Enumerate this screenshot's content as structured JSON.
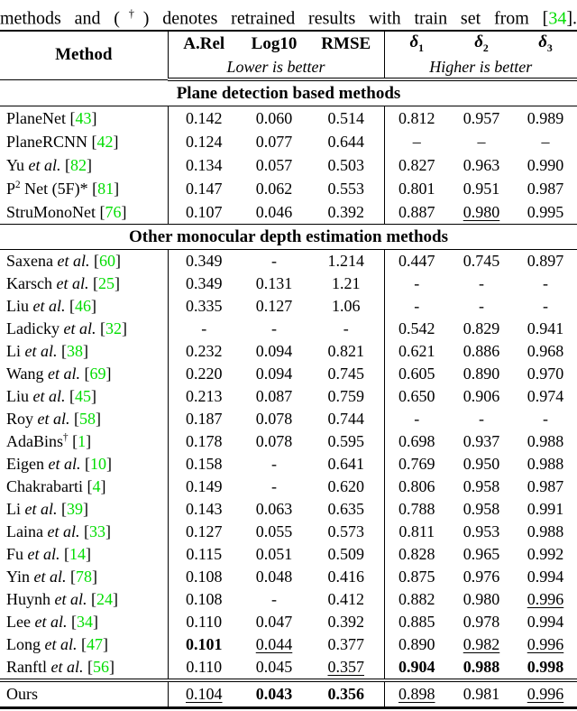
{
  "colors": {
    "cite_green": "#00dd00",
    "text": "#000000",
    "background": "#ffffff"
  },
  "caption": {
    "pre": "methods and (",
    "dagger": "†",
    "post_dagger": ") denotes retrained results with train set from ",
    "cite_open": "[",
    "cite_num": "34",
    "cite_close": "]."
  },
  "header": {
    "method": "Method",
    "metrics": [
      "A.Rel",
      "Log10",
      "RMSE"
    ],
    "deltas": [
      {
        "sym": "δ",
        "sub": "1"
      },
      {
        "sym": "δ",
        "sub": "2"
      },
      {
        "sym": "δ",
        "sub": "3"
      }
    ],
    "lower_note": "Lower is better",
    "higher_note": "Higher is better"
  },
  "sections": [
    {
      "title": "Plane detection based methods",
      "rows": [
        {
          "method": {
            "parts": [
              {
                "t": "PlaneNet"
              }
            ],
            "cite": "43"
          },
          "values": [
            {
              "t": "0.142"
            },
            {
              "t": "0.060"
            },
            {
              "t": "0.514"
            },
            {
              "t": "0.812"
            },
            {
              "t": "0.957"
            },
            {
              "t": "0.989"
            }
          ]
        },
        {
          "method": {
            "parts": [
              {
                "t": "PlaneRCNN"
              }
            ],
            "cite": "42"
          },
          "values": [
            {
              "t": "0.124"
            },
            {
              "t": "0.077"
            },
            {
              "t": "0.644"
            },
            {
              "t": "–"
            },
            {
              "t": "–"
            },
            {
              "t": "–"
            }
          ]
        },
        {
          "method": {
            "parts": [
              {
                "t": "Yu "
              },
              {
                "t": "et al.",
                "i": true
              }
            ],
            "cite": "82"
          },
          "values": [
            {
              "t": "0.134"
            },
            {
              "t": "0.057"
            },
            {
              "t": "0.503"
            },
            {
              "t": "0.827"
            },
            {
              "t": "0.963"
            },
            {
              "t": "0.990"
            }
          ]
        },
        {
          "method": {
            "parts": [
              {
                "t": "P"
              },
              {
                "t": "2",
                "sup": true
              },
              {
                "t": " Net (5F)*"
              }
            ],
            "cite": "81"
          },
          "values": [
            {
              "t": "0.147"
            },
            {
              "t": "0.062"
            },
            {
              "t": "0.553"
            },
            {
              "t": "0.801"
            },
            {
              "t": "0.951"
            },
            {
              "t": "0.987"
            }
          ]
        },
        {
          "method": {
            "parts": [
              {
                "t": "StruMonoNet"
              }
            ],
            "cite": "76"
          },
          "values": [
            {
              "t": "0.107"
            },
            {
              "t": "0.046"
            },
            {
              "t": "0.392"
            },
            {
              "t": "0.887"
            },
            {
              "t": "0.980",
              "u": true
            },
            {
              "t": "0.995"
            }
          ]
        }
      ]
    },
    {
      "title": "Other monocular depth estimation methods",
      "rows": [
        {
          "method": {
            "parts": [
              {
                "t": "Saxena "
              },
              {
                "t": "et al.",
                "i": true
              }
            ],
            "cite": "60"
          },
          "values": [
            {
              "t": "0.349"
            },
            {
              "t": "-"
            },
            {
              "t": "1.214"
            },
            {
              "t": "0.447"
            },
            {
              "t": "0.745"
            },
            {
              "t": "0.897"
            }
          ]
        },
        {
          "method": {
            "parts": [
              {
                "t": "Karsch "
              },
              {
                "t": "et al.",
                "i": true
              }
            ],
            "cite": "25"
          },
          "values": [
            {
              "t": "0.349"
            },
            {
              "t": "0.131"
            },
            {
              "t": "1.21"
            },
            {
              "t": "-"
            },
            {
              "t": "-"
            },
            {
              "t": "-"
            }
          ]
        },
        {
          "method": {
            "parts": [
              {
                "t": "Liu "
              },
              {
                "t": "et al.",
                "i": true
              }
            ],
            "cite": "46"
          },
          "values": [
            {
              "t": "0.335"
            },
            {
              "t": "0.127"
            },
            {
              "t": "1.06"
            },
            {
              "t": "-"
            },
            {
              "t": "-"
            },
            {
              "t": "-"
            }
          ]
        },
        {
          "method": {
            "parts": [
              {
                "t": "Ladicky "
              },
              {
                "t": "et al.",
                "i": true
              }
            ],
            "cite": "32"
          },
          "values": [
            {
              "t": "-"
            },
            {
              "t": "-"
            },
            {
              "t": "-"
            },
            {
              "t": "0.542"
            },
            {
              "t": "0.829"
            },
            {
              "t": "0.941"
            }
          ]
        },
        {
          "method": {
            "parts": [
              {
                "t": "Li "
              },
              {
                "t": "et al.",
                "i": true
              }
            ],
            "cite": "38"
          },
          "values": [
            {
              "t": "0.232"
            },
            {
              "t": "0.094"
            },
            {
              "t": "0.821"
            },
            {
              "t": "0.621"
            },
            {
              "t": "0.886"
            },
            {
              "t": "0.968"
            }
          ]
        },
        {
          "method": {
            "parts": [
              {
                "t": "Wang "
              },
              {
                "t": "et al.",
                "i": true
              }
            ],
            "cite": "69"
          },
          "values": [
            {
              "t": "0.220"
            },
            {
              "t": "0.094"
            },
            {
              "t": "0.745"
            },
            {
              "t": "0.605"
            },
            {
              "t": "0.890"
            },
            {
              "t": "0.970"
            }
          ]
        },
        {
          "method": {
            "parts": [
              {
                "t": "Liu "
              },
              {
                "t": "et al.",
                "i": true
              }
            ],
            "cite": "45"
          },
          "values": [
            {
              "t": "0.213"
            },
            {
              "t": "0.087"
            },
            {
              "t": "0.759"
            },
            {
              "t": "0.650"
            },
            {
              "t": "0.906"
            },
            {
              "t": "0.974"
            }
          ]
        },
        {
          "method": {
            "parts": [
              {
                "t": "Roy "
              },
              {
                "t": "et al.",
                "i": true
              }
            ],
            "cite": "58"
          },
          "values": [
            {
              "t": "0.187"
            },
            {
              "t": "0.078"
            },
            {
              "t": "0.744"
            },
            {
              "t": "-"
            },
            {
              "t": "-"
            },
            {
              "t": "-"
            }
          ]
        },
        {
          "method": {
            "parts": [
              {
                "t": "AdaBins"
              },
              {
                "t": "†",
                "sup": true
              }
            ],
            "cite": "1"
          },
          "values": [
            {
              "t": "0.178"
            },
            {
              "t": "0.078"
            },
            {
              "t": "0.595"
            },
            {
              "t": "0.698"
            },
            {
              "t": "0.937"
            },
            {
              "t": "0.988"
            }
          ]
        },
        {
          "method": {
            "parts": [
              {
                "t": "Eigen "
              },
              {
                "t": "et al.",
                "i": true
              }
            ],
            "cite": "10"
          },
          "values": [
            {
              "t": "0.158"
            },
            {
              "t": "-"
            },
            {
              "t": "0.641"
            },
            {
              "t": "0.769"
            },
            {
              "t": "0.950"
            },
            {
              "t": "0.988"
            }
          ]
        },
        {
          "method": {
            "parts": [
              {
                "t": "Chakrabarti"
              }
            ],
            "cite": "4"
          },
          "values": [
            {
              "t": "0.149"
            },
            {
              "t": "-"
            },
            {
              "t": "0.620"
            },
            {
              "t": "0.806"
            },
            {
              "t": "0.958"
            },
            {
              "t": "0.987"
            }
          ]
        },
        {
          "method": {
            "parts": [
              {
                "t": "Li "
              },
              {
                "t": "et al.",
                "i": true
              }
            ],
            "cite": "39"
          },
          "values": [
            {
              "t": "0.143"
            },
            {
              "t": "0.063"
            },
            {
              "t": "0.635"
            },
            {
              "t": "0.788"
            },
            {
              "t": "0.958"
            },
            {
              "t": "0.991"
            }
          ]
        },
        {
          "method": {
            "parts": [
              {
                "t": "Laina "
              },
              {
                "t": "et al.",
                "i": true
              }
            ],
            "cite": "33"
          },
          "values": [
            {
              "t": "0.127"
            },
            {
              "t": "0.055"
            },
            {
              "t": "0.573"
            },
            {
              "t": "0.811"
            },
            {
              "t": "0.953"
            },
            {
              "t": "0.988"
            }
          ]
        },
        {
          "method": {
            "parts": [
              {
                "t": "Fu "
              },
              {
                "t": "et al.",
                "i": true
              }
            ],
            "cite": "14"
          },
          "values": [
            {
              "t": "0.115"
            },
            {
              "t": "0.051"
            },
            {
              "t": "0.509"
            },
            {
              "t": "0.828"
            },
            {
              "t": "0.965"
            },
            {
              "t": "0.992"
            }
          ]
        },
        {
          "method": {
            "parts": [
              {
                "t": "Yin "
              },
              {
                "t": "et al.",
                "i": true
              }
            ],
            "cite": "78"
          },
          "values": [
            {
              "t": "0.108"
            },
            {
              "t": "0.048"
            },
            {
              "t": "0.416"
            },
            {
              "t": "0.875"
            },
            {
              "t": "0.976"
            },
            {
              "t": "0.994"
            }
          ]
        },
        {
          "method": {
            "parts": [
              {
                "t": "Huynh "
              },
              {
                "t": "et al.",
                "i": true
              }
            ],
            "cite": "24"
          },
          "values": [
            {
              "t": "0.108"
            },
            {
              "t": "-"
            },
            {
              "t": "0.412"
            },
            {
              "t": "0.882"
            },
            {
              "t": "0.980"
            },
            {
              "t": "0.996",
              "u": true
            }
          ]
        },
        {
          "method": {
            "parts": [
              {
                "t": "Lee "
              },
              {
                "t": "et al.",
                "i": true
              }
            ],
            "cite": "34"
          },
          "values": [
            {
              "t": "0.110"
            },
            {
              "t": "0.047"
            },
            {
              "t": "0.392"
            },
            {
              "t": "0.885"
            },
            {
              "t": "0.978"
            },
            {
              "t": "0.994"
            }
          ]
        },
        {
          "method": {
            "parts": [
              {
                "t": "Long "
              },
              {
                "t": "et al.",
                "i": true
              }
            ],
            "cite": "47"
          },
          "values": [
            {
              "t": "0.101",
              "b": true
            },
            {
              "t": "0.044",
              "u": true
            },
            {
              "t": "0.377"
            },
            {
              "t": "0.890"
            },
            {
              "t": "0.982",
              "u": true
            },
            {
              "t": "0.996",
              "u": true
            }
          ]
        },
        {
          "method": {
            "parts": [
              {
                "t": "Ranftl "
              },
              {
                "t": "et al.",
                "i": true
              }
            ],
            "cite": "56"
          },
          "values": [
            {
              "t": "0.110"
            },
            {
              "t": "0.045"
            },
            {
              "t": "0.357",
              "u": true
            },
            {
              "t": "0.904",
              "b": true
            },
            {
              "t": "0.988",
              "b": true
            },
            {
              "t": "0.998",
              "b": true
            }
          ]
        }
      ]
    }
  ],
  "footer": {
    "row": {
      "method": {
        "parts": [
          {
            "t": "Ours"
          }
        ],
        "cite": null
      },
      "values": [
        {
          "t": "0.104",
          "u": true
        },
        {
          "t": "0.043",
          "b": true
        },
        {
          "t": "0.356",
          "b": true
        },
        {
          "t": "0.898",
          "u": true
        },
        {
          "t": "0.981"
        },
        {
          "t": "0.996",
          "u": true
        }
      ]
    }
  }
}
